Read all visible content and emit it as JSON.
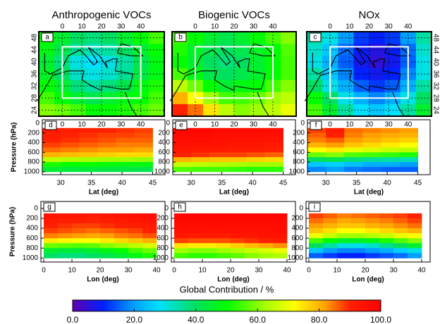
{
  "chart_data": [
    {
      "type": "map",
      "title": "Anthropogenic VOCs",
      "label": "a",
      "x": [
        -8,
        0,
        8,
        16,
        24,
        32,
        40,
        48
      ],
      "y": [
        48,
        44,
        40,
        36,
        32,
        28,
        24
      ],
      "values": [
        [
          50,
          45,
          40,
          38,
          40,
          45,
          50,
          55
        ],
        [
          48,
          42,
          36,
          33,
          35,
          40,
          45,
          50
        ],
        [
          45,
          38,
          30,
          28,
          30,
          35,
          42,
          48
        ],
        [
          46,
          40,
          32,
          30,
          32,
          36,
          43,
          48
        ],
        [
          50,
          45,
          38,
          35,
          38,
          42,
          48,
          52
        ],
        [
          55,
          50,
          45,
          42,
          45,
          48,
          50,
          55
        ],
        [
          60,
          58,
          55,
          50,
          50,
          52,
          55,
          58
        ]
      ],
      "xlim": [
        -12,
        52
      ],
      "ylim": [
        22,
        50
      ],
      "xticks": [
        0,
        10,
        20,
        30,
        40
      ],
      "yticks": [
        24,
        28,
        32,
        36,
        40,
        44,
        48
      ],
      "box": {
        "x": [
          0,
          40
        ],
        "y": [
          28,
          45
        ]
      }
    },
    {
      "type": "map",
      "title": "Biogenic VOCs",
      "label": "b",
      "x": [
        -8,
        0,
        8,
        16,
        24,
        32,
        40,
        48
      ],
      "y": [
        48,
        44,
        40,
        36,
        32,
        28,
        24
      ],
      "values": [
        [
          55,
          50,
          45,
          42,
          45,
          50,
          55,
          60
        ],
        [
          52,
          46,
          42,
          40,
          42,
          46,
          50,
          56
        ],
        [
          50,
          45,
          40,
          38,
          40,
          45,
          50,
          55
        ],
        [
          55,
          48,
          42,
          40,
          42,
          45,
          50,
          55
        ],
        [
          65,
          58,
          50,
          45,
          48,
          50,
          55,
          60
        ],
        [
          80,
          72,
          62,
          55,
          55,
          58,
          62,
          65
        ],
        [
          90,
          85,
          75,
          65,
          60,
          62,
          65,
          70
        ]
      ],
      "xlim": [
        -12,
        52
      ],
      "ylim": [
        22,
        50
      ],
      "xticks": [
        0,
        10,
        20,
        30,
        40
      ],
      "box": {
        "x": [
          0,
          40
        ],
        "y": [
          28,
          45
        ]
      }
    },
    {
      "type": "map",
      "title": "NOx",
      "label": "c",
      "x": [
        -8,
        0,
        8,
        16,
        24,
        32,
        40,
        48
      ],
      "y": [
        48,
        44,
        40,
        36,
        32,
        28,
        24
      ],
      "values": [
        [
          35,
          30,
          20,
          12,
          10,
          12,
          20,
          35
        ],
        [
          32,
          25,
          16,
          9,
          6,
          9,
          16,
          32
        ],
        [
          30,
          22,
          15,
          8,
          5,
          8,
          15,
          30
        ],
        [
          35,
          25,
          18,
          10,
          8,
          10,
          18,
          30
        ],
        [
          40,
          30,
          22,
          15,
          12,
          15,
          22,
          35
        ],
        [
          50,
          40,
          30,
          22,
          18,
          22,
          30,
          40
        ],
        [
          55,
          45,
          35,
          28,
          25,
          28,
          35,
          45
        ]
      ],
      "xlim": [
        -12,
        52
      ],
      "ylim": [
        22,
        50
      ],
      "xticks": [
        0,
        10,
        20,
        30,
        40
      ],
      "yticks": [
        24,
        28,
        32,
        36,
        40,
        44,
        48
      ],
      "yaxis_side": "right",
      "box": {
        "x": [
          0,
          40
        ],
        "y": [
          28,
          45
        ]
      }
    },
    {
      "type": "section",
      "label": "d",
      "xlabel": "Lat (deg)",
      "ylabel": "Pressure (hPa)",
      "x": [
        28.5,
        31.5,
        34.5,
        37.5,
        40.5,
        43.5
      ],
      "y": [
        150,
        250,
        350,
        450,
        550,
        650,
        750,
        850,
        950
      ],
      "values": [
        [
          92,
          91,
          90,
          90,
          89,
          88
        ],
        [
          91,
          90,
          89,
          88,
          88,
          87
        ],
        [
          90,
          89,
          88,
          87,
          86,
          86
        ],
        [
          88,
          87,
          86,
          85,
          84,
          84
        ],
        [
          85,
          84,
          83,
          82,
          82,
          81
        ],
        [
          80,
          79,
          78,
          77,
          76,
          76
        ],
        [
          65,
          64,
          63,
          62,
          62,
          61
        ],
        [
          52,
          50,
          50,
          49,
          48,
          48
        ],
        [
          45,
          44,
          44,
          43,
          43,
          42
        ]
      ],
      "xlim": [
        27,
        47
      ],
      "ylim": [
        1060,
        -70
      ],
      "xticks": [
        30,
        35,
        40,
        45
      ],
      "yticks": [
        0,
        200,
        400,
        600,
        800,
        1000
      ]
    },
    {
      "type": "section",
      "label": "e",
      "xlabel": "Lat (deg)",
      "x": [
        28.5,
        31.5,
        34.5,
        37.5,
        40.5,
        43.5
      ],
      "y": [
        150,
        250,
        350,
        450,
        550,
        650,
        750,
        850,
        950
      ],
      "values": [
        [
          98,
          98,
          97,
          97,
          97,
          96
        ],
        [
          97,
          97,
          96,
          96,
          96,
          95
        ],
        [
          96,
          96,
          95,
          95,
          94,
          94
        ],
        [
          95,
          94,
          94,
          93,
          93,
          92
        ],
        [
          93,
          92,
          92,
          91,
          91,
          90
        ],
        [
          90,
          89,
          88,
          88,
          87,
          86
        ],
        [
          80,
          79,
          78,
          78,
          77,
          76
        ],
        [
          66,
          65,
          64,
          63,
          62,
          62
        ],
        [
          56,
          55,
          55,
          54,
          53,
          53
        ]
      ],
      "xlim": [
        27,
        47
      ],
      "ylim": [
        1060,
        -70
      ],
      "xticks": [
        30,
        35,
        40,
        45
      ],
      "yticks": [
        0,
        200,
        400,
        600,
        800,
        1000
      ]
    },
    {
      "type": "section",
      "label": "f",
      "xlabel": "Lat (deg)",
      "x": [
        28.5,
        31.5,
        34.5,
        37.5,
        40.5,
        43.5
      ],
      "y": [
        150,
        250,
        350,
        450,
        550,
        650,
        750,
        850,
        950
      ],
      "values": [
        [
          88,
          92,
          85,
          84,
          83,
          82
        ],
        [
          86,
          90,
          84,
          82,
          81,
          80
        ],
        [
          84,
          86,
          82,
          80,
          78,
          77
        ],
        [
          80,
          82,
          78,
          76,
          74,
          72
        ],
        [
          72,
          74,
          70,
          68,
          66,
          65
        ],
        [
          58,
          60,
          56,
          55,
          54,
          52
        ],
        [
          40,
          42,
          38,
          36,
          35,
          34
        ],
        [
          25,
          26,
          24,
          22,
          22,
          20
        ],
        [
          18,
          20,
          17,
          16,
          15,
          15
        ]
      ],
      "xlim": [
        27,
        47
      ],
      "ylim": [
        1060,
        -70
      ],
      "xticks": [
        30,
        35,
        40,
        45
      ],
      "yticks": [
        0,
        200,
        400,
        600,
        800,
        1000
      ]
    },
    {
      "type": "section",
      "label": "g",
      "xlabel": "Lon (deg)",
      "ylabel": "Pressure (hPa)",
      "x": [
        2.5,
        7.5,
        12.5,
        17.5,
        22.5,
        27.5,
        32.5,
        37.5
      ],
      "y": [
        150,
        250,
        350,
        450,
        550,
        650,
        750,
        850,
        950
      ],
      "values": [
        [
          94,
          93,
          93,
          92,
          93,
          94,
          95,
          96
        ],
        [
          92,
          91,
          91,
          90,
          91,
          92,
          93,
          94
        ],
        [
          90,
          89,
          88,
          88,
          89,
          90,
          91,
          92
        ],
        [
          88,
          87,
          86,
          85,
          86,
          87,
          88,
          90
        ],
        [
          84,
          83,
          82,
          81,
          82,
          84,
          85,
          87
        ],
        [
          74,
          73,
          72,
          72,
          74,
          76,
          78,
          80
        ],
        [
          58,
          57,
          56,
          57,
          60,
          62,
          65,
          68
        ],
        [
          45,
          44,
          44,
          45,
          48,
          50,
          55,
          58
        ],
        [
          40,
          38,
          38,
          40,
          42,
          45,
          48,
          52
        ]
      ],
      "xlim": [
        -1,
        43
      ],
      "ylim": [
        1080,
        -140
      ],
      "xticks": [
        0,
        10,
        20,
        30,
        40
      ],
      "yticks": [
        0,
        200,
        400,
        600,
        800,
        1000
      ]
    },
    {
      "type": "section",
      "label": "h",
      "xlabel": "Lon (deg)",
      "x": [
        2.5,
        7.5,
        12.5,
        17.5,
        22.5,
        27.5,
        32.5,
        37.5
      ],
      "y": [
        150,
        250,
        350,
        450,
        550,
        650,
        750,
        850,
        950
      ],
      "values": [
        [
          98,
          98,
          98,
          98,
          98,
          98,
          98,
          98
        ],
        [
          97,
          97,
          97,
          97,
          97,
          97,
          97,
          97
        ],
        [
          96,
          96,
          96,
          96,
          96,
          96,
          96,
          96
        ],
        [
          95,
          95,
          94,
          94,
          95,
          95,
          95,
          96
        ],
        [
          93,
          92,
          92,
          92,
          93,
          93,
          94,
          94
        ],
        [
          88,
          87,
          87,
          87,
          88,
          89,
          90,
          91
        ],
        [
          75,
          74,
          74,
          75,
          77,
          79,
          81,
          83
        ],
        [
          62,
          60,
          60,
          62,
          64,
          66,
          68,
          70
        ],
        [
          55,
          53,
          53,
          55,
          57,
          60,
          62,
          64
        ]
      ],
      "xlim": [
        -1,
        43
      ],
      "ylim": [
        1080,
        -140
      ],
      "xticks": [
        0,
        10,
        20,
        30,
        40
      ],
      "yticks": [
        0,
        200,
        400,
        600,
        800,
        1000
      ]
    },
    {
      "type": "section",
      "label": "i",
      "xlabel": "Lon (deg)",
      "x": [
        2.5,
        7.5,
        12.5,
        17.5,
        22.5,
        27.5,
        32.5,
        37.5
      ],
      "y": [
        150,
        250,
        350,
        450,
        550,
        650,
        750,
        850,
        950
      ],
      "values": [
        [
          88,
          86,
          84,
          85,
          86,
          87,
          88,
          90
        ],
        [
          85,
          83,
          81,
          82,
          83,
          84,
          86,
          88
        ],
        [
          82,
          80,
          78,
          78,
          80,
          81,
          83,
          85
        ],
        [
          78,
          75,
          72,
          72,
          74,
          76,
          78,
          80
        ],
        [
          70,
          66,
          62,
          62,
          64,
          66,
          70,
          72
        ],
        [
          55,
          50,
          46,
          46,
          48,
          52,
          56,
          60
        ],
        [
          40,
          35,
          30,
          30,
          32,
          36,
          40,
          45
        ],
        [
          25,
          20,
          18,
          18,
          20,
          22,
          26,
          30
        ],
        [
          15,
          12,
          10,
          10,
          12,
          14,
          16,
          20
        ]
      ],
      "xlim": [
        -1,
        43
      ],
      "ylim": [
        1080,
        -140
      ],
      "xticks": [
        0,
        10,
        20,
        30,
        40
      ],
      "yticks": [
        0,
        200,
        400,
        600,
        800,
        1000
      ]
    },
    {
      "type": "colorbar",
      "title": "Global Contribution / %",
      "xlim": [
        0,
        100
      ],
      "xticks": [
        {
          "value": 0,
          "label": "0.0"
        },
        {
          "value": 20,
          "label": "20.0"
        },
        {
          "value": 40,
          "label": "40.0"
        },
        {
          "value": 60,
          "label": "60.0"
        },
        {
          "value": 80,
          "label": "80.0"
        },
        {
          "value": 100,
          "label": "100.0"
        }
      ],
      "colorscale": [
        {
          "value": 0,
          "color": "#6000b0"
        },
        {
          "value": 10,
          "color": "#0020ff"
        },
        {
          "value": 20,
          "color": "#00a0ff"
        },
        {
          "value": 28,
          "color": "#00e0ff"
        },
        {
          "value": 40,
          "color": "#00e060"
        },
        {
          "value": 50,
          "color": "#00ff00"
        },
        {
          "value": 62,
          "color": "#a0ff00"
        },
        {
          "value": 72,
          "color": "#ffff00"
        },
        {
          "value": 82,
          "color": "#ffa000"
        },
        {
          "value": 90,
          "color": "#ff2000"
        },
        {
          "value": 100,
          "color": "#ff0000"
        }
      ]
    }
  ]
}
